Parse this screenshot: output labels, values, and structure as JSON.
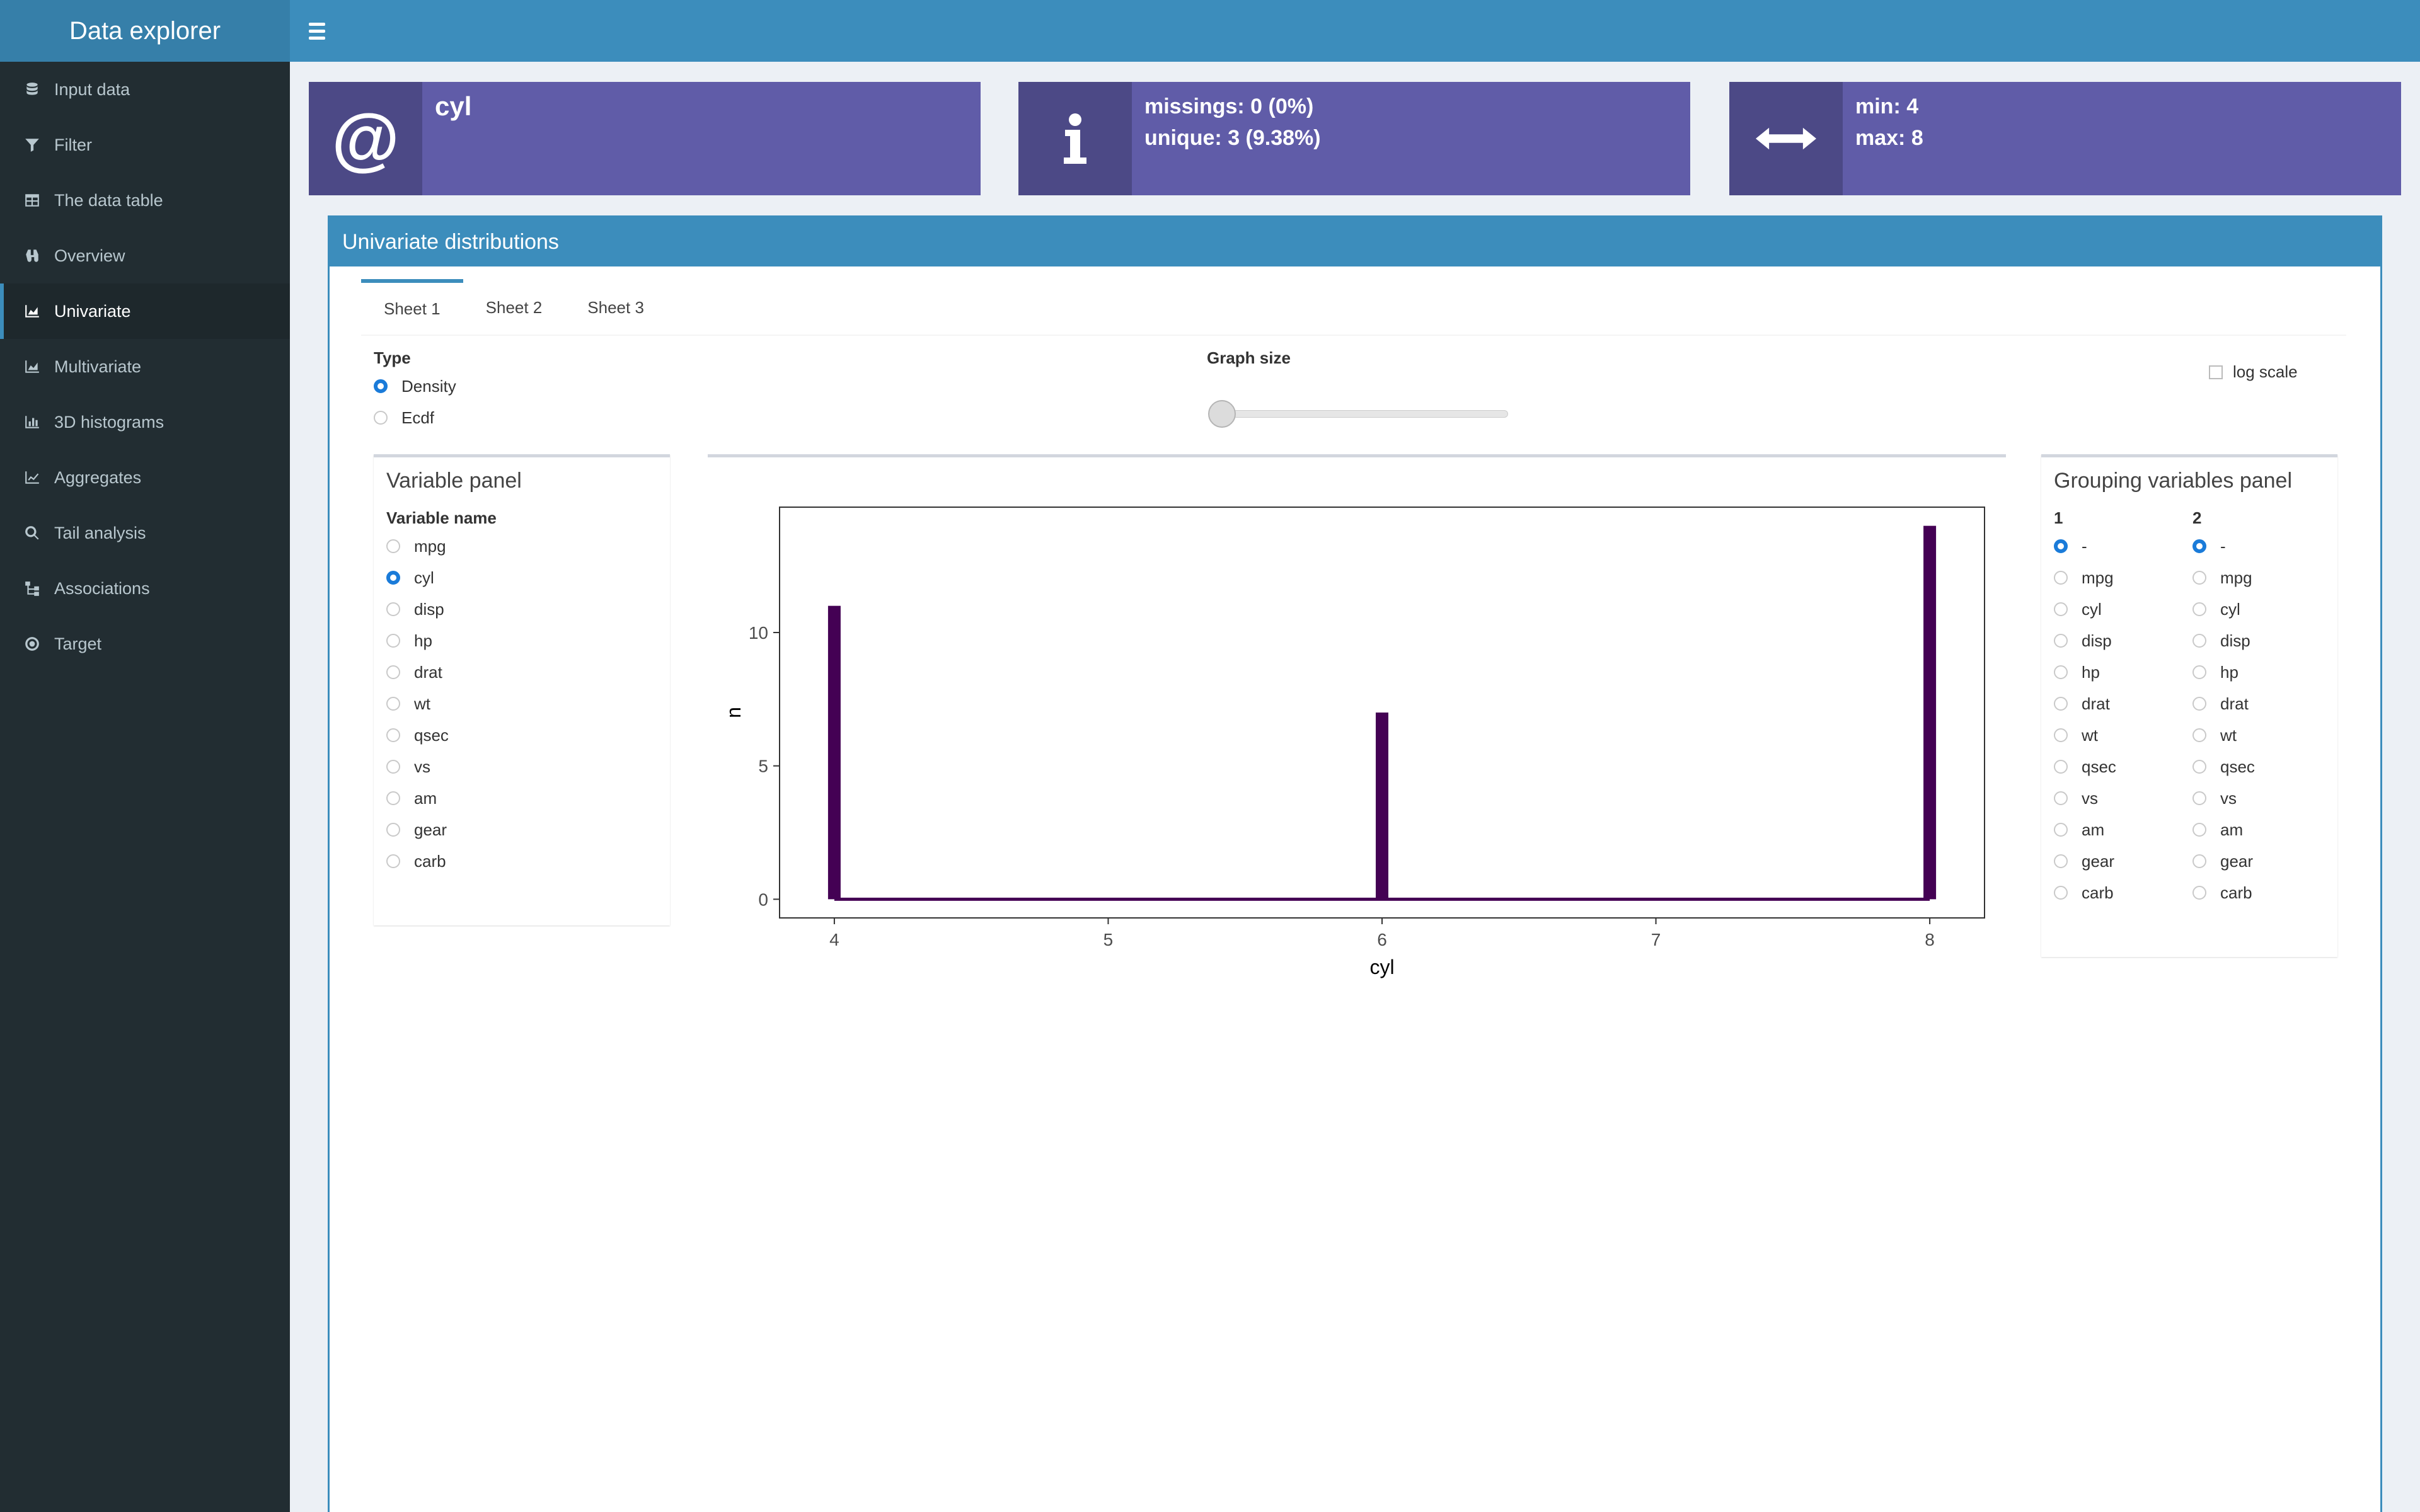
{
  "header": {
    "app_title": "Data explorer"
  },
  "sidebar": {
    "items": [
      {
        "label": "Input data",
        "icon": "database-icon",
        "active": false
      },
      {
        "label": "Filter",
        "icon": "filter-icon",
        "active": false
      },
      {
        "label": "The data table",
        "icon": "table-icon",
        "active": false
      },
      {
        "label": "Overview",
        "icon": "binoculars-icon",
        "active": false
      },
      {
        "label": "Univariate",
        "icon": "area-chart-icon",
        "active": true
      },
      {
        "label": "Multivariate",
        "icon": "area-chart-icon",
        "active": false
      },
      {
        "label": "3D histograms",
        "icon": "bar-chart-icon",
        "active": false
      },
      {
        "label": "Aggregates",
        "icon": "line-chart-icon",
        "active": false
      },
      {
        "label": "Tail analysis",
        "icon": "search-icon",
        "active": false
      },
      {
        "label": "Associations",
        "icon": "sitemap-icon",
        "active": false
      },
      {
        "label": "Target",
        "icon": "bullseye-icon",
        "active": false
      }
    ]
  },
  "infoboxes": {
    "variable": {
      "title": "cyl",
      "icon": "at-icon"
    },
    "stats": {
      "line1": "missings: 0 (0%)",
      "line2": "unique: 3 (9.38%)",
      "icon": "info-icon"
    },
    "range": {
      "line1": "min: 4",
      "line2": "max: 8",
      "icon": "arrows-h-icon"
    }
  },
  "main": {
    "title": "Univariate distributions",
    "tabs": [
      {
        "label": "Sheet 1",
        "active": true
      },
      {
        "label": "Sheet 2",
        "active": false
      },
      {
        "label": "Sheet 3",
        "active": false
      }
    ],
    "type_label": "Type",
    "type_options": [
      {
        "label": "Density",
        "checked": true
      },
      {
        "label": "Ecdf",
        "checked": false
      }
    ],
    "graph_size_label": "Graph size",
    "graph_size_value": 0,
    "log_scale_label": "log scale",
    "log_scale_checked": false
  },
  "variable_panel": {
    "title": "Variable panel",
    "label": "Variable name",
    "options": [
      "mpg",
      "cyl",
      "disp",
      "hp",
      "drat",
      "wt",
      "qsec",
      "vs",
      "am",
      "gear",
      "carb"
    ],
    "selected": "cyl"
  },
  "grouping_panel": {
    "title": "Grouping variables panel",
    "col1_label": "1",
    "col2_label": "2",
    "options": [
      "-",
      "mpg",
      "cyl",
      "disp",
      "hp",
      "drat",
      "wt",
      "qsec",
      "vs",
      "am",
      "gear",
      "carb"
    ],
    "selected1": "-",
    "selected2": "-"
  },
  "chart_data": {
    "type": "bar",
    "x": [
      4,
      6,
      8
    ],
    "values": [
      11,
      7,
      14
    ],
    "xlabel": "cyl",
    "ylabel": "n",
    "xlim": [
      3.8,
      8.2
    ],
    "ylim": [
      -0.7,
      14.7
    ],
    "xticks": [
      "4",
      "5",
      "6",
      "7",
      "8"
    ],
    "yticks": [
      "0",
      "5",
      "10"
    ],
    "bar_color": "#440154",
    "grid": false
  },
  "colors": {
    "accent": "#3c8dbc",
    "infobox": "#605ca8",
    "sidebar": "#222d32"
  }
}
